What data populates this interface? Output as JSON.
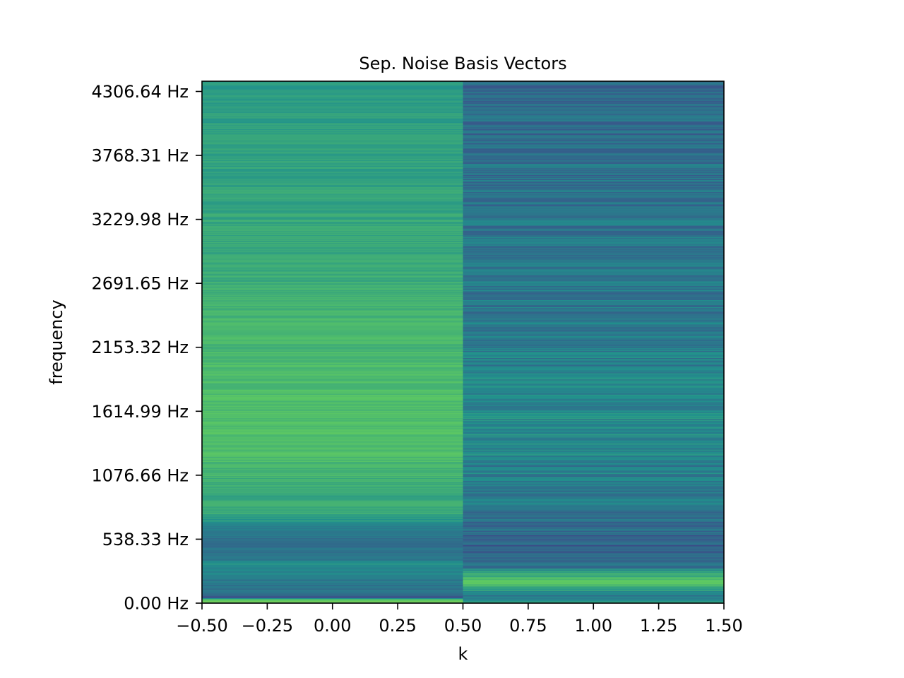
{
  "chart_data": {
    "type": "heatmap",
    "title": "Sep. Noise Basis Vectors",
    "xlabel": "k",
    "ylabel": "frequency",
    "xlim": [
      -0.5,
      1.5
    ],
    "ylim": [
      0.0,
      4392.77
    ],
    "x_ticks": [
      {
        "value": -0.5,
        "label": "−0.50"
      },
      {
        "value": -0.25,
        "label": "−0.25"
      },
      {
        "value": 0.0,
        "label": "0.00"
      },
      {
        "value": 0.25,
        "label": "0.25"
      },
      {
        "value": 0.5,
        "label": "0.50"
      },
      {
        "value": 0.75,
        "label": "0.75"
      },
      {
        "value": 1.0,
        "label": "1.00"
      },
      {
        "value": 1.25,
        "label": "1.25"
      },
      {
        "value": 1.5,
        "label": "1.50"
      }
    ],
    "y_ticks": [
      {
        "value": 0.0,
        "label": "0.00 Hz"
      },
      {
        "value": 538.33,
        "label": "538.33 Hz"
      },
      {
        "value": 1076.66,
        "label": "1076.66 Hz"
      },
      {
        "value": 1614.99,
        "label": "1614.99 Hz"
      },
      {
        "value": 2153.32,
        "label": "2153.32 Hz"
      },
      {
        "value": 2691.65,
        "label": "2691.65 Hz"
      },
      {
        "value": 3229.98,
        "label": "3229.98 Hz"
      },
      {
        "value": 3768.31,
        "label": "3768.31 Hz"
      },
      {
        "value": 4306.64,
        "label": "4306.64 Hz"
      }
    ],
    "colormap": "viridis",
    "grid": false,
    "columns": [
      {
        "k": 0,
        "profile": [
          {
            "freq": 0,
            "level": 0.72
          },
          {
            "freq": 30,
            "level": 0.78
          },
          {
            "freq": 45,
            "level": 0.25
          },
          {
            "freq": 90,
            "level": 0.38
          },
          {
            "freq": 200,
            "level": 0.4
          },
          {
            "freq": 330,
            "level": 0.5
          },
          {
            "freq": 360,
            "level": 0.42
          },
          {
            "freq": 500,
            "level": 0.36
          },
          {
            "freq": 620,
            "level": 0.4
          },
          {
            "freq": 760,
            "level": 0.62
          },
          {
            "freq": 900,
            "level": 0.6
          },
          {
            "freq": 1200,
            "level": 0.68
          },
          {
            "freq": 1600,
            "level": 0.7
          },
          {
            "freq": 2000,
            "level": 0.68
          },
          {
            "freq": 2500,
            "level": 0.64
          },
          {
            "freq": 3000,
            "level": 0.6
          },
          {
            "freq": 3500,
            "level": 0.58
          },
          {
            "freq": 4000,
            "level": 0.56
          },
          {
            "freq": 4392,
            "level": 0.54
          }
        ]
      },
      {
        "k": 1,
        "profile": [
          {
            "freq": 0,
            "level": 0.62
          },
          {
            "freq": 60,
            "level": 0.42
          },
          {
            "freq": 110,
            "level": 0.55
          },
          {
            "freq": 160,
            "level": 0.75
          },
          {
            "freq": 240,
            "level": 0.6
          },
          {
            "freq": 320,
            "level": 0.35
          },
          {
            "freq": 500,
            "level": 0.3
          },
          {
            "freq": 800,
            "level": 0.4
          },
          {
            "freq": 1200,
            "level": 0.44
          },
          {
            "freq": 1500,
            "level": 0.48
          },
          {
            "freq": 2000,
            "level": 0.44
          },
          {
            "freq": 2500,
            "level": 0.4
          },
          {
            "freq": 3000,
            "level": 0.4
          },
          {
            "freq": 3500,
            "level": 0.38
          },
          {
            "freq": 3900,
            "level": 0.36
          },
          {
            "freq": 4392,
            "level": 0.34
          }
        ]
      }
    ]
  }
}
